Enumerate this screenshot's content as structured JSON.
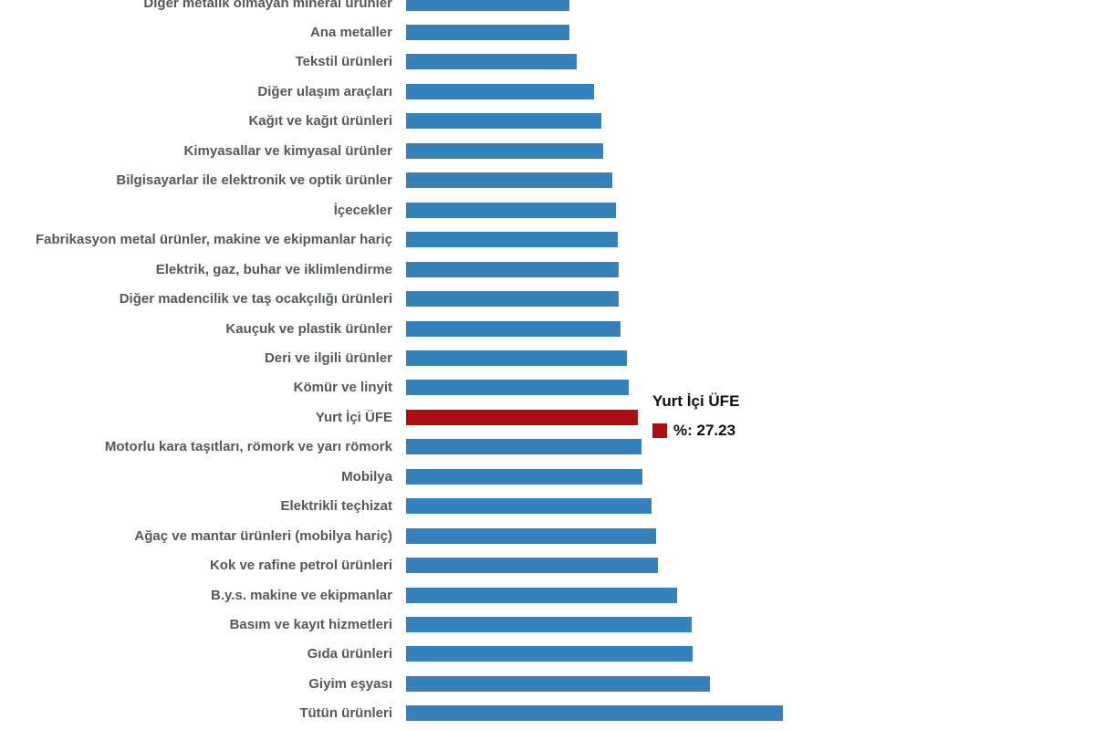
{
  "chart_data": {
    "type": "bar",
    "orientation": "horizontal",
    "title": "",
    "xlabel": "",
    "ylabel": "",
    "series_name": "%",
    "xlim": [
      0,
      45
    ],
    "grid": false,
    "axes_hidden": true,
    "legend": "none",
    "sort": "ascending-downward",
    "categories": [
      "Diğer metalik olmayan mineral ürünler",
      "Ana metaller",
      "Tekstil ürünleri",
      "Diğer ulaşım araçları",
      "Kağıt ve kağıt ürünleri",
      "Kimyasallar ve kimyasal ürünler",
      "Bilgisayarlar ile elektronik ve optik ürünler",
      "İçecekler",
      "Fabrikasyon metal ürünler, makine ve ekipmanlar hariç",
      "Elektrik, gaz, buhar ve iklimlendirme",
      "Diğer madencilik ve taş ocakçılığı ürünleri",
      "Kauçuk ve plastik ürünler",
      "Deri ve ilgili ürünler",
      "Kömür ve linyit",
      "Yurt İçi ÜFE",
      "Motorlu kara taşıtları, römork ve yarı römork",
      "Mobilya",
      "Elektrikli teçhizat",
      "Ağaç ve mantar ürünleri (mobilya hariç)",
      "Kok ve rafine petrol ürünleri",
      "B.y.s. makine ve ekipmanlar",
      "Basım ve kayıt hizmetleri",
      "Gıda ürünleri",
      "Giyim eşyası",
      "Tütün ürünleri"
    ],
    "values": [
      19.15,
      19.2,
      20.0,
      22.1,
      22.9,
      23.15,
      24.25,
      24.65,
      24.85,
      24.95,
      25.0,
      25.15,
      25.95,
      26.2,
      27.23,
      27.7,
      27.75,
      28.85,
      29.4,
      29.6,
      31.8,
      33.5,
      33.65,
      35.65,
      44.25
    ],
    "highlight_index": 14,
    "highlight_category": "Yurt İçi ÜFE",
    "bar_color": "#3581bc",
    "highlight_color": "#ad0c10",
    "label_color": "#56575b"
  },
  "tooltip": {
    "title": "Yurt İçi ÜFE",
    "text": "%: 27.23",
    "value": 27.23,
    "marker_color": "#ad0c10"
  }
}
